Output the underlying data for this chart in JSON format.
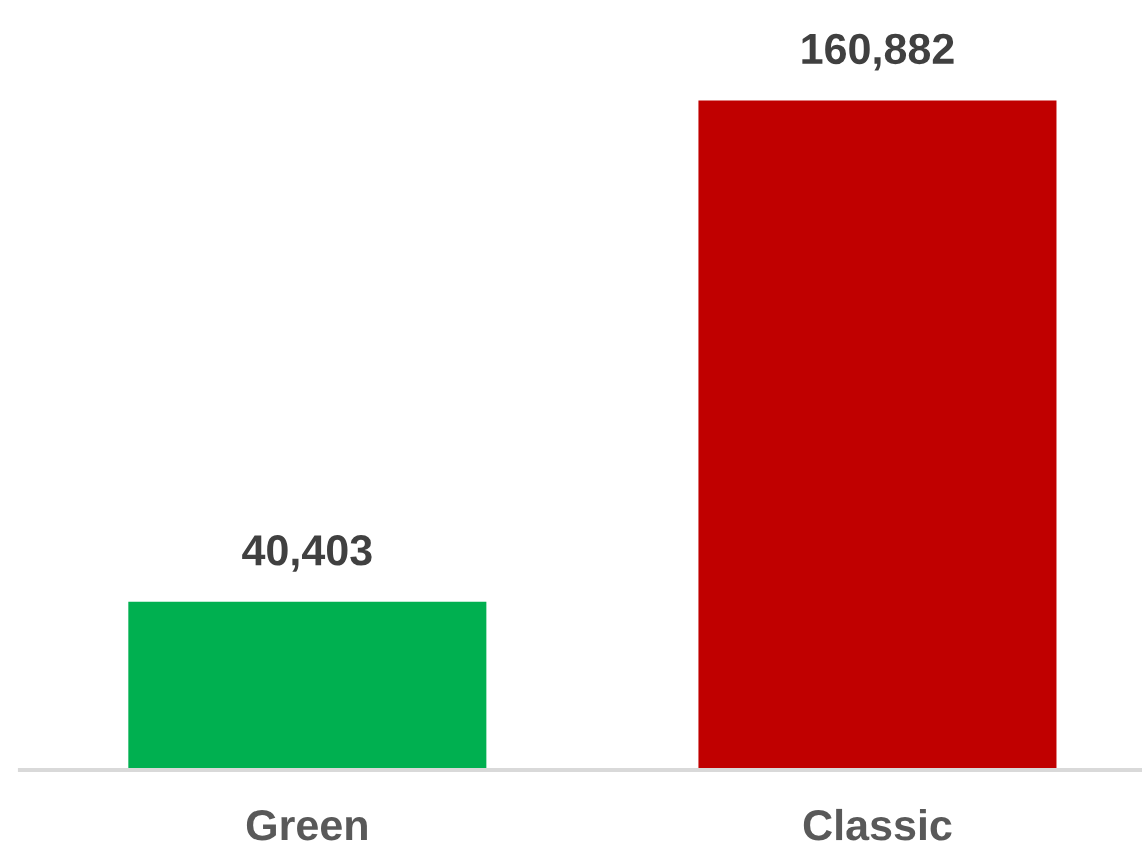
{
  "chart_data": {
    "type": "bar",
    "categories": [
      "Green",
      "Classic"
    ],
    "values": [
      40403,
      160882
    ],
    "colors": [
      "#00b050",
      "#c00000"
    ],
    "value_labels": [
      "40,403",
      "160,882"
    ],
    "grid": false,
    "legend": false
  }
}
